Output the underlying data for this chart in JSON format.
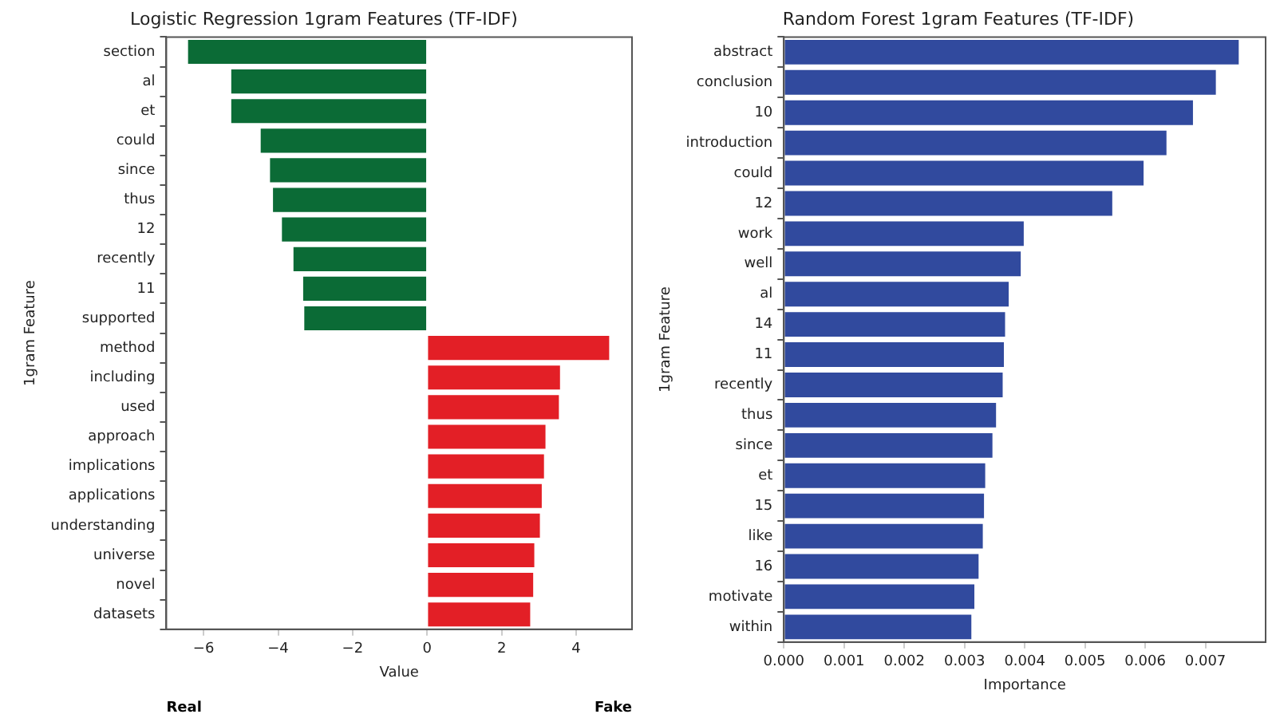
{
  "chart_data": [
    {
      "type": "bar",
      "orientation": "horizontal",
      "title": "Logistic Regression 1gram Features (TF-IDF)",
      "xlabel": "Value",
      "ylabel": "1gram Feature",
      "categories": [
        "section",
        "al",
        "et",
        "could",
        "since",
        "thus",
        "12",
        "recently",
        "11",
        "supported",
        "method",
        "including",
        "used",
        "approach",
        "implications",
        "applications",
        "understanding",
        "universe",
        "novel",
        "datasets"
      ],
      "values": [
        -6.46,
        -5.3,
        -5.3,
        -4.51,
        -4.26,
        -4.18,
        -3.94,
        -3.63,
        -3.37,
        -3.34,
        4.93,
        3.61,
        3.58,
        3.22,
        3.18,
        3.12,
        3.07,
        2.92,
        2.89,
        2.81
      ],
      "colors": [
        "#0b6b36",
        "#0b6b36",
        "#0b6b36",
        "#0b6b36",
        "#0b6b36",
        "#0b6b36",
        "#0b6b36",
        "#0b6b36",
        "#0b6b36",
        "#0b6b36",
        "#e31f26",
        "#e31f26",
        "#e31f26",
        "#e31f26",
        "#e31f26",
        "#e31f26",
        "#e31f26",
        "#e31f26",
        "#e31f26",
        "#e31f26"
      ],
      "xlim": [
        -7,
        5.5
      ],
      "xticks": [
        {
          "value": -6,
          "label": "−6"
        },
        {
          "value": -4,
          "label": "−4"
        },
        {
          "value": -2,
          "label": "−2"
        },
        0,
        2,
        4
      ],
      "grid": false,
      "legend": false,
      "annotations": [
        "Real",
        "Fake"
      ]
    },
    {
      "type": "bar",
      "orientation": "horizontal",
      "title": "Random Forest 1gram Features (TF-IDF)",
      "xlabel": "Importance",
      "ylabel": "1gram Feature",
      "categories": [
        "abstract",
        "conclusion",
        "10",
        "introduction",
        "could",
        "12",
        "work",
        "well",
        "al",
        "14",
        "11",
        "recently",
        "thus",
        "since",
        "et",
        "15",
        "like",
        "16",
        "motivate",
        "within"
      ],
      "values": [
        0.00758,
        0.0072,
        0.00682,
        0.00638,
        0.006,
        0.00548,
        0.00401,
        0.00396,
        0.00376,
        0.0037,
        0.00368,
        0.00366,
        0.00355,
        0.00349,
        0.00337,
        0.00335,
        0.00333,
        0.00326,
        0.00319,
        0.00314
      ],
      "color": "#314a9e",
      "xlim": [
        0,
        0.008
      ],
      "xticks": [
        {
          "value": 0,
          "label": "0.000"
        },
        {
          "value": 0.001,
          "label": "0.001"
        },
        {
          "value": 0.002,
          "label": "0.002"
        },
        {
          "value": 0.003,
          "label": "0.003"
        },
        {
          "value": 0.004,
          "label": "0.004"
        },
        {
          "value": 0.005,
          "label": "0.005"
        },
        {
          "value": 0.006,
          "label": "0.006"
        },
        {
          "value": 0.007,
          "label": "0.007"
        }
      ],
      "grid": false,
      "legend": false
    }
  ]
}
